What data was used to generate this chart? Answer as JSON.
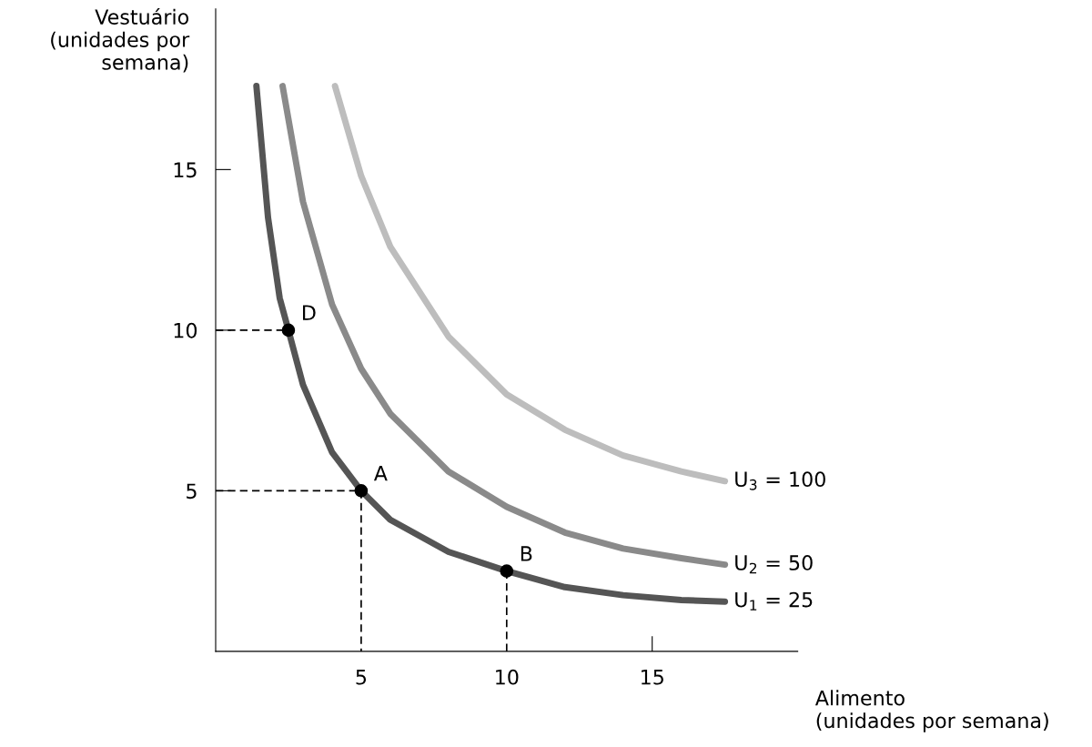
{
  "chart_data": {
    "type": "line",
    "xlabel": "Alimento\n(unidades por semana)",
    "ylabel": "Vestuário\n(unidades por\nsemana)",
    "xlim": [
      0,
      20
    ],
    "ylim": [
      0,
      20
    ],
    "xticks": [
      5,
      10,
      15
    ],
    "yticks": [
      5,
      10,
      15
    ],
    "grid": false,
    "legend": false,
    "marker": "none",
    "series": [
      {
        "name": "U$_{1}$ = 25",
        "color": "#555555",
        "x": [
          1.4,
          1.8,
          2.2,
          2.5,
          3,
          4,
          5,
          6,
          8,
          10,
          12,
          14,
          16,
          17.5
        ],
        "values": [
          17.6,
          13.5,
          11,
          10,
          8.3,
          6.2,
          5,
          4.1,
          3.1,
          2.5,
          2.0,
          1.75,
          1.6,
          1.55
        ]
      },
      {
        "name": "U$_{2}$ = 50",
        "color": "#8a8a8a",
        "x": [
          2.3,
          3,
          4,
          5,
          6,
          8,
          10,
          12,
          14,
          16,
          17.5
        ],
        "values": [
          17.6,
          14,
          10.8,
          8.8,
          7.4,
          5.6,
          4.5,
          3.7,
          3.2,
          2.9,
          2.7
        ]
      },
      {
        "name": "U$_{3}$ = 100",
        "color": "#bdbdbd",
        "x": [
          4.1,
          5,
          6,
          8,
          10,
          12,
          14,
          16,
          17.5
        ],
        "values": [
          17.6,
          14.8,
          12.6,
          9.8,
          8,
          6.9,
          6.1,
          5.6,
          5.3
        ]
      },
      {
        "type": "line",
        "line_style": "dashed",
        "color": "#000000",
        "x": [
          0,
          2.5
        ],
        "values": [
          10,
          10
        ]
      },
      {
        "type": "line",
        "line_style": "dashed",
        "color": "#000000",
        "x": [
          0,
          5,
          5
        ],
        "values": [
          5,
          5,
          0
        ]
      },
      {
        "type": "line",
        "line_style": "dashed",
        "color": "#000000",
        "x": [
          10,
          10
        ],
        "values": [
          0,
          2.5
        ]
      },
      {
        "type": "scatter",
        "marker": "circle",
        "color": "#000000",
        "x": [
          2.5,
          5,
          10
        ],
        "values": [
          10,
          5,
          2.5
        ]
      }
    ],
    "annotations": [
      {
        "text": "D",
        "x": 2.5,
        "y": 10
      },
      {
        "text": "A",
        "x": 5,
        "y": 5
      },
      {
        "text": "B",
        "x": 10,
        "y": 2.5
      }
    ]
  }
}
